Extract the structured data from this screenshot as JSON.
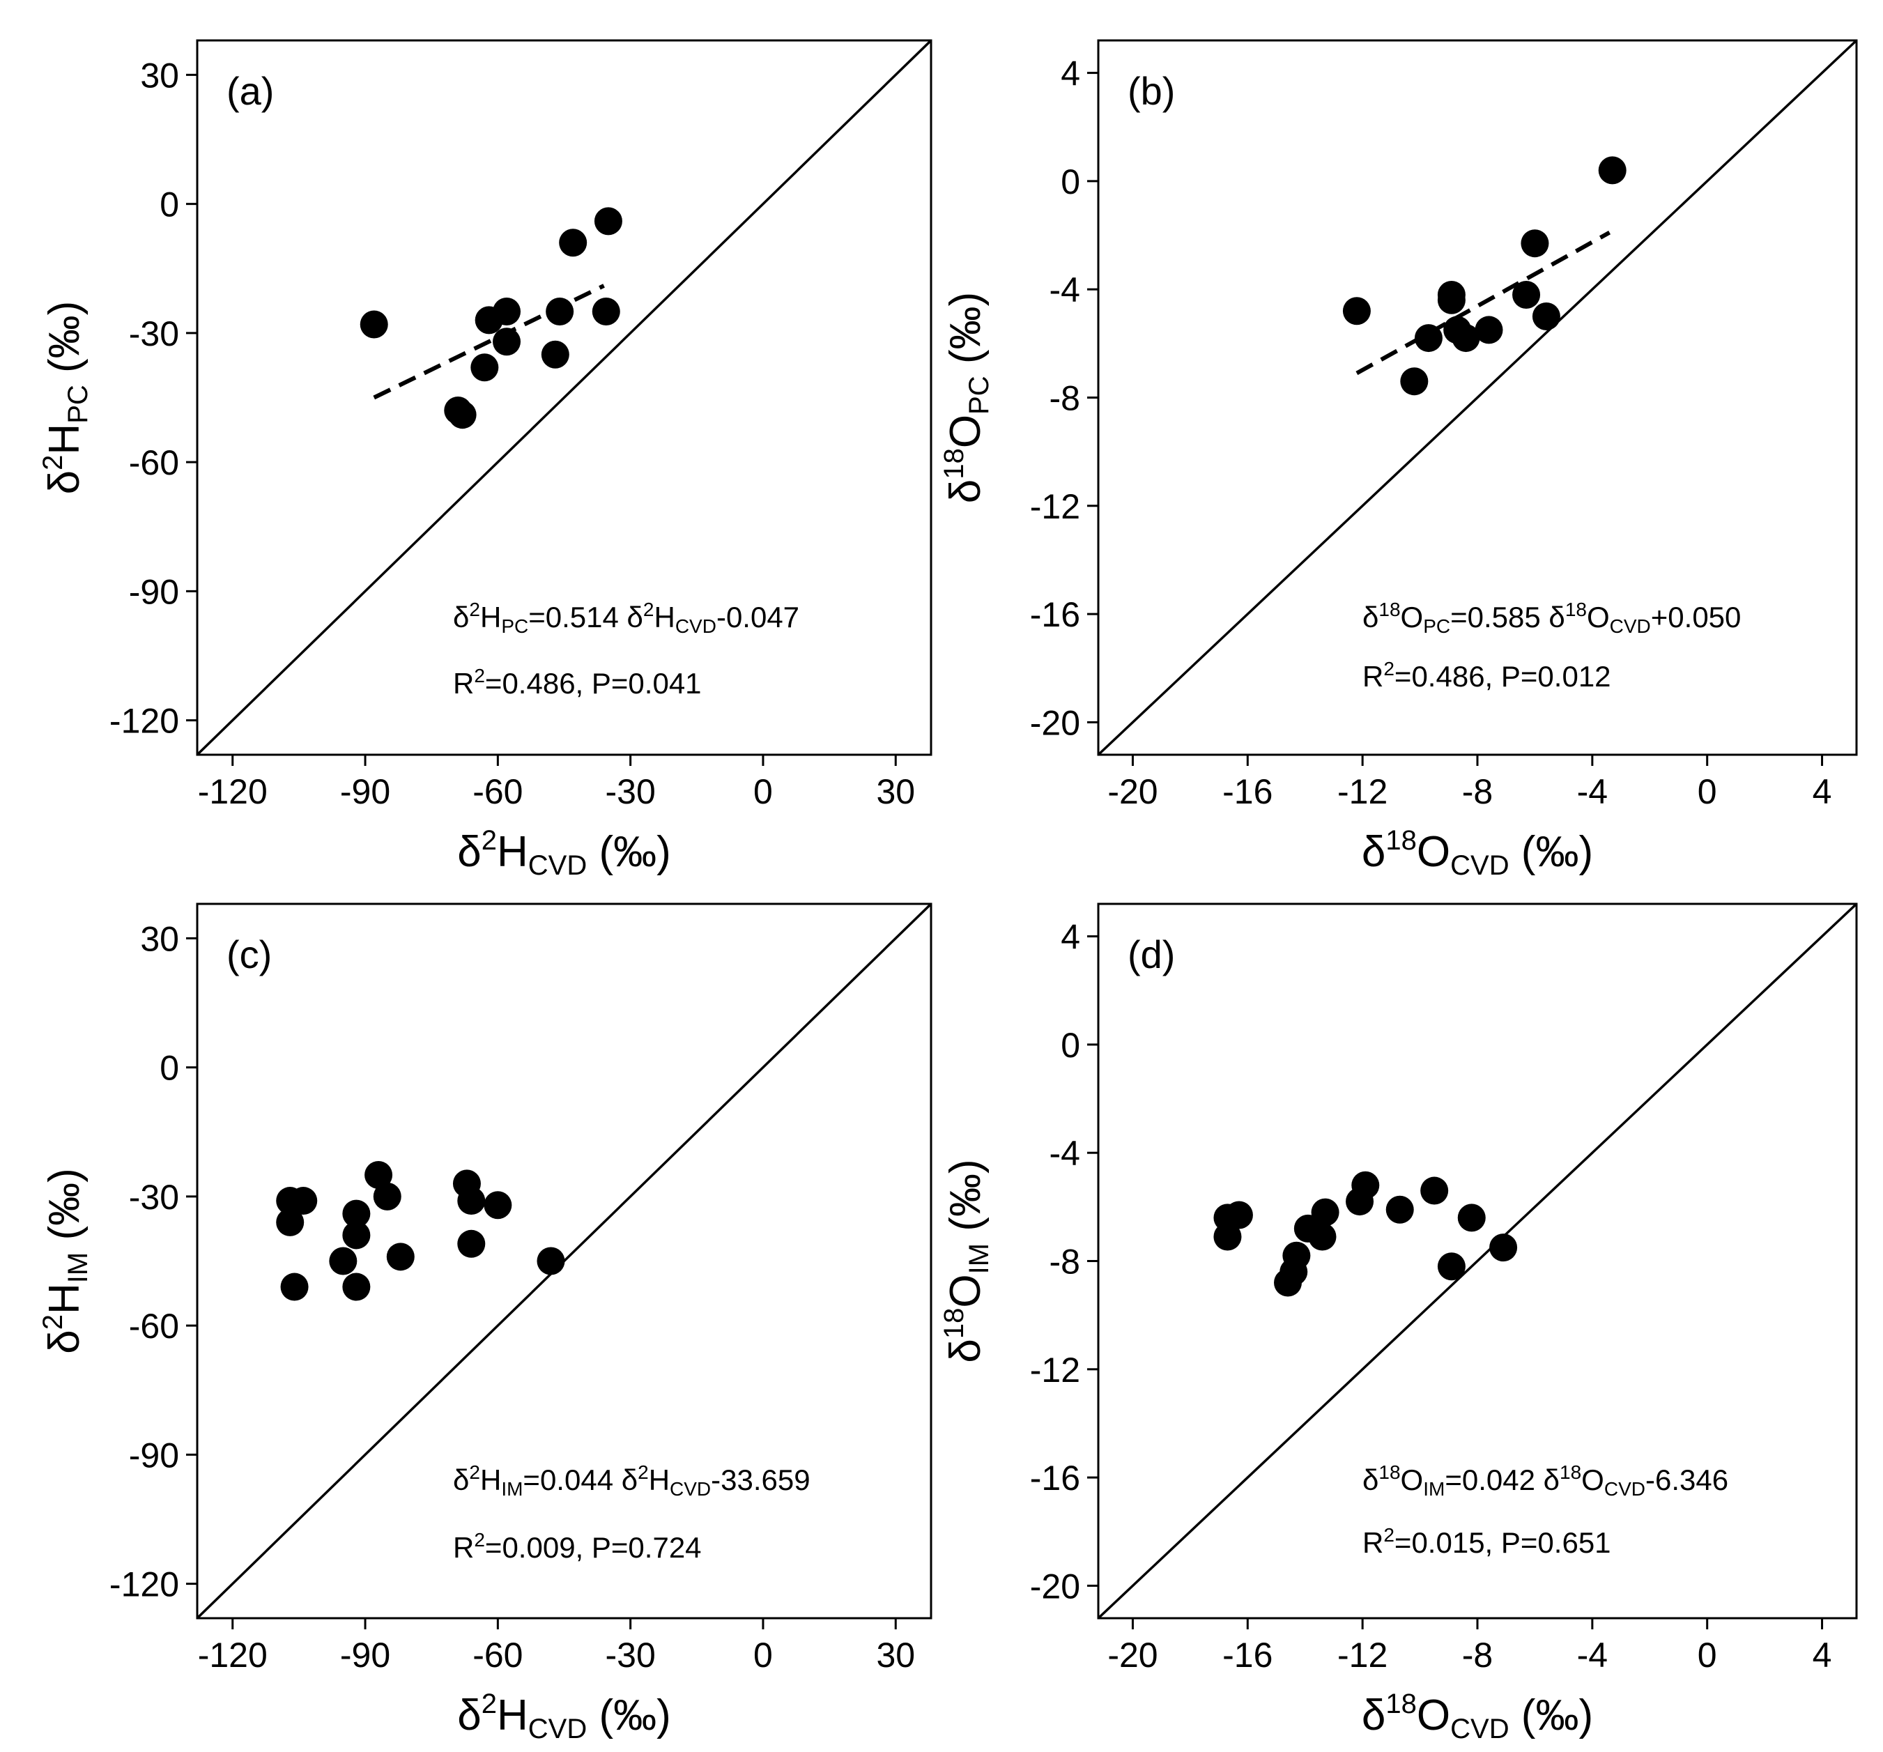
{
  "chart_data": [
    {
      "type": "scatter",
      "panel_label": "(a)",
      "xlabel": "δ2HCVD (‰)",
      "ylabel": "δ2HPC (‰)",
      "xlabel_parts": {
        "pre": "δ",
        "sup": "2",
        "main": "H",
        "sub": "CVD",
        "unit": " (‰)"
      },
      "ylabel_parts": {
        "pre": "δ",
        "sup": "2",
        "main": "H",
        "sub": "PC",
        "unit": " (‰)"
      },
      "xlim": [
        -128,
        38
      ],
      "ylim": [
        -128,
        38
      ],
      "xticks": [
        -120,
        -90,
        -60,
        -30,
        0,
        30
      ],
      "yticks": [
        -120,
        -90,
        -60,
        -30,
        0,
        30
      ],
      "x": [
        -88,
        -68,
        -69,
        -63,
        -62,
        -58,
        -58,
        -47,
        -46,
        -43,
        -35,
        -35.5
      ],
      "y": [
        -28,
        -49,
        -48,
        -38,
        -27,
        -25,
        -32,
        -35,
        -25,
        -9,
        -4,
        -25
      ],
      "fit_line": {
        "x": [
          -88,
          -36
        ],
        "y": [
          -45,
          -19
        ]
      },
      "one_to_one": true,
      "equation_parts": {
        "a": "δ",
        "b": "2",
        "c": "H",
        "d": "PC",
        "e": "=0.514 δ",
        "f": "2",
        "g": "H",
        "h": "CVD",
        "i": "-0.047"
      },
      "stats_parts": {
        "a": "R",
        "b": "2",
        "c": "=0.486, P=0.041"
      }
    },
    {
      "type": "scatter",
      "panel_label": "(b)",
      "xlabel": "δ18OCVD (‰)",
      "ylabel": "δ18OPC (‰)",
      "xlabel_parts": {
        "pre": "δ",
        "sup": "18",
        "main": "O",
        "sub": "CVD",
        "unit": " (‰)"
      },
      "ylabel_parts": {
        "pre": "δ",
        "sup": "18",
        "main": "O",
        "sub": "PC",
        "unit": " (‰)"
      },
      "xlim": [
        -21.2,
        5.2
      ],
      "ylim": [
        -21.2,
        5.2
      ],
      "xticks": [
        -20,
        -16,
        -12,
        -8,
        -4,
        0,
        4
      ],
      "yticks": [
        -20,
        -16,
        -12,
        -8,
        -4,
        0,
        4
      ],
      "x": [
        -12.2,
        -10.2,
        -9.7,
        -8.9,
        -8.9,
        -8.7,
        -8.4,
        -7.6,
        -6.3,
        -6.0,
        -5.6,
        -3.3
      ],
      "y": [
        -4.8,
        -7.4,
        -5.8,
        -4.2,
        -4.4,
        -5.5,
        -5.8,
        -5.5,
        -4.2,
        -2.3,
        -5.0,
        0.4
      ],
      "fit_line": {
        "x": [
          -12.2,
          -3.4
        ],
        "y": [
          -7.1,
          -1.9
        ]
      },
      "one_to_one": true,
      "equation_parts": {
        "a": "δ",
        "b": "18",
        "c": "O",
        "d": "PC",
        "e": "=0.585 δ",
        "f": "18",
        "g": "O",
        "h": "CVD",
        "i": "+0.050"
      },
      "stats_parts": {
        "a": "R",
        "b": "2",
        "c": "=0.486, P=0.012"
      }
    },
    {
      "type": "scatter",
      "panel_label": "(c)",
      "xlabel": "δ2HCVD (‰)",
      "ylabel": "δ2HIM (‰)",
      "xlabel_parts": {
        "pre": "δ",
        "sup": "2",
        "main": "H",
        "sub": "CVD",
        "unit": " (‰)"
      },
      "ylabel_parts": {
        "pre": "δ",
        "sup": "2",
        "main": "H",
        "sub": "IM",
        "unit": " (‰)"
      },
      "xlim": [
        -128,
        38
      ],
      "ylim": [
        -128,
        38
      ],
      "xticks": [
        -120,
        -90,
        -60,
        -30,
        0,
        30
      ],
      "yticks": [
        -120,
        -90,
        -60,
        -30,
        0,
        30
      ],
      "x": [
        -107,
        -107,
        -104,
        -106,
        -92,
        -92,
        -95,
        -92,
        -87,
        -85,
        -82,
        -67,
        -66,
        -66,
        -60,
        -48
      ],
      "y": [
        -31,
        -36,
        -31,
        -51,
        -34,
        -39,
        -45,
        -51,
        -25,
        -30,
        -44,
        -27,
        -31,
        -41,
        -32,
        -45
      ],
      "fit_line": null,
      "one_to_one": true,
      "equation_parts": {
        "a": "δ",
        "b": "2",
        "c": "H",
        "d": "IM",
        "e": "=0.044 δ",
        "f": "2",
        "g": "H",
        "h": "CVD",
        "i": "-33.659"
      },
      "stats_parts": {
        "a": "R",
        "b": "2",
        "c": "=0.009, P=0.724"
      }
    },
    {
      "type": "scatter",
      "panel_label": "(d)",
      "xlabel": "δ18OCVD (‰)",
      "ylabel": "δ18OIM (‰)",
      "xlabel_parts": {
        "pre": "δ",
        "sup": "18",
        "main": "O",
        "sub": "CVD",
        "unit": " (‰)"
      },
      "ylabel_parts": {
        "pre": "δ",
        "sup": "18",
        "main": "O",
        "sub": "IM",
        "unit": " (‰)"
      },
      "xlim": [
        -21.2,
        5.2
      ],
      "ylim": [
        -21.2,
        5.2
      ],
      "xticks": [
        -20,
        -16,
        -12,
        -8,
        -4,
        0,
        4
      ],
      "yticks": [
        -20,
        -16,
        -12,
        -8,
        -4,
        0,
        4
      ],
      "x": [
        -16.7,
        -16.7,
        -16.3,
        -14.6,
        -14.4,
        -14.3,
        -13.9,
        -13.4,
        -13.3,
        -12.1,
        -11.9,
        -10.7,
        -9.5,
        -8.9,
        -8.2,
        -7.1
      ],
      "y": [
        -6.4,
        -7.1,
        -6.3,
        -8.8,
        -8.4,
        -7.8,
        -6.8,
        -7.1,
        -6.2,
        -5.8,
        -5.2,
        -6.1,
        -5.4,
        -8.2,
        -6.4,
        -7.5
      ],
      "fit_line": null,
      "one_to_one": true,
      "equation_parts": {
        "a": "δ",
        "b": "18",
        "c": "O",
        "d": "IM",
        "e": "=0.042 δ",
        "f": "18",
        "g": "O",
        "h": "CVD",
        "i": "-6.346"
      },
      "stats_parts": {
        "a": "R",
        "b": "2",
        "c": "=0.015, P=0.651"
      }
    }
  ]
}
